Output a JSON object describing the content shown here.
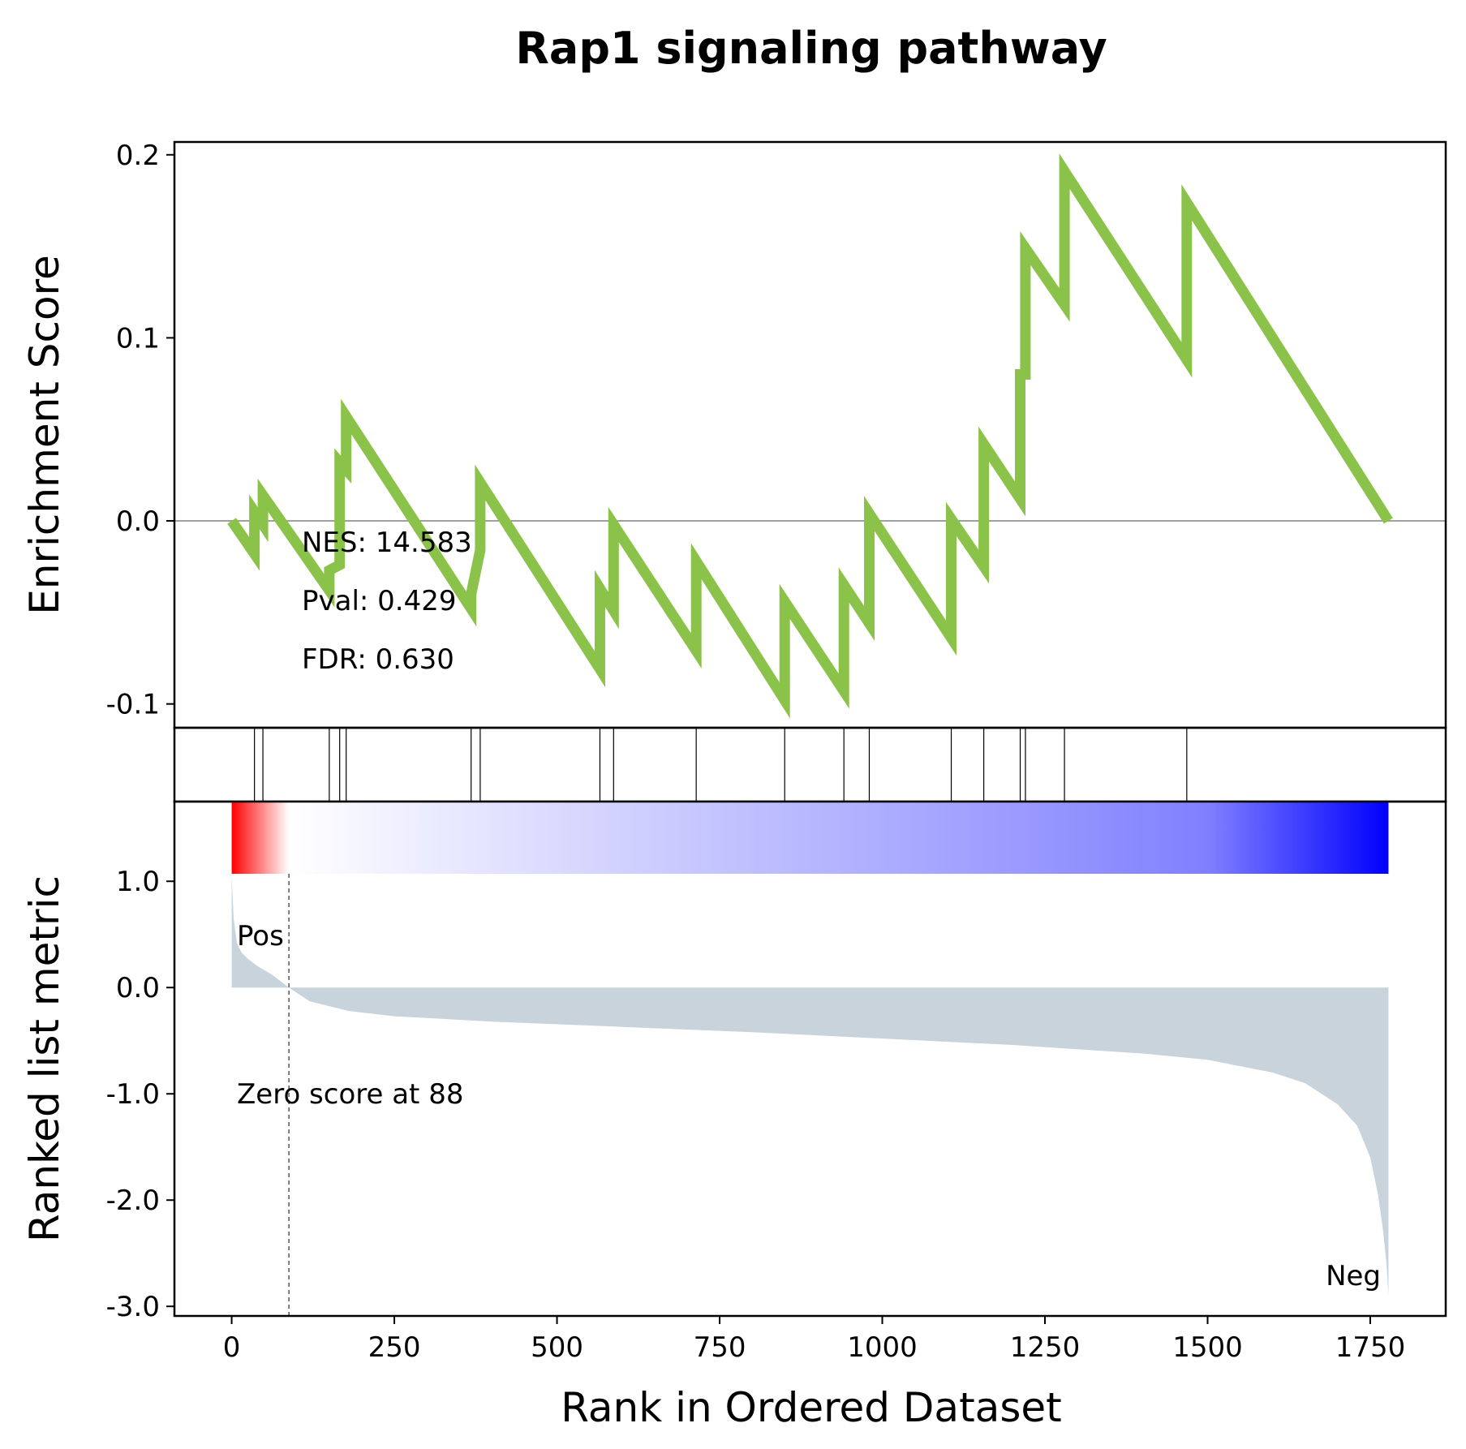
{
  "chart_data": {
    "type": "line",
    "title": "Rap1 signaling pathway",
    "xlabel": "Rank in Ordered Dataset",
    "xlim": [
      -88,
      1866
    ],
    "x_ticks": [
      "0",
      "250",
      "500",
      "750",
      "1000",
      "1250",
      "1500",
      "1750"
    ],
    "x_tick_values": [
      0,
      250,
      500,
      750,
      1000,
      1250,
      1500,
      1750
    ],
    "enrichment": {
      "ylabel": "Enrichment Score",
      "ylim": [
        -0.113,
        0.207
      ],
      "y_ticks": [
        "0.2",
        "0.1",
        "0.0",
        "-0.1"
      ],
      "y_tick_values": [
        0.2,
        0.1,
        0.0,
        -0.1
      ],
      "line_color": "#8bc34a",
      "points": [
        [
          0,
          0.0
        ],
        [
          35,
          -0.018
        ],
        [
          35,
          0.005
        ],
        [
          48,
          -0.002
        ],
        [
          48,
          0.014
        ],
        [
          150,
          -0.038
        ],
        [
          150,
          -0.027
        ],
        [
          166,
          -0.024
        ],
        [
          166,
          0.032
        ],
        [
          176,
          0.028
        ],
        [
          176,
          0.057
        ],
        [
          368,
          -0.048
        ],
        [
          368,
          -0.04
        ],
        [
          382,
          -0.016
        ],
        [
          382,
          0.021
        ],
        [
          566,
          -0.081
        ],
        [
          566,
          -0.037
        ],
        [
          587,
          -0.049
        ],
        [
          587,
          -0.002
        ],
        [
          714,
          -0.071
        ],
        [
          714,
          -0.022
        ],
        [
          850,
          -0.098
        ],
        [
          850,
          -0.044
        ],
        [
          941,
          -0.093
        ],
        [
          941,
          -0.035
        ],
        [
          980,
          -0.056
        ],
        [
          980,
          0.004
        ],
        [
          1106,
          -0.064
        ],
        [
          1106,
          0.001
        ],
        [
          1156,
          -0.025
        ],
        [
          1156,
          0.042
        ],
        [
          1212,
          0.012
        ],
        [
          1212,
          0.08
        ],
        [
          1220,
          0.08
        ],
        [
          1220,
          0.149
        ],
        [
          1280,
          0.118
        ],
        [
          1280,
          0.191
        ],
        [
          1468,
          0.088
        ],
        [
          1468,
          0.174
        ],
        [
          1778,
          0.0
        ]
      ],
      "zero_line_color": "#808080"
    },
    "stats": {
      "nes": "NES: 14.583",
      "pval": "Pval: 0.429",
      "fdr": "FDR: 0.630"
    },
    "hits": [
      35,
      48,
      150,
      166,
      176,
      368,
      382,
      566,
      587,
      714,
      850,
      941,
      980,
      1106,
      1156,
      1212,
      1220,
      1280,
      1468
    ],
    "ranked_metric": {
      "ylabel": "Ranked list metric",
      "ylim": [
        -3.09,
        1.75
      ],
      "y_ticks": [
        "1.0",
        "0.0",
        "-1.0",
        "-2.0",
        "-3.0"
      ],
      "y_tick_values": [
        1.0,
        0.0,
        -1.0,
        -2.0,
        -3.0
      ],
      "fill_color": "#c8d3dc",
      "points": [
        [
          0,
          1.05
        ],
        [
          3,
          0.65
        ],
        [
          8,
          0.42
        ],
        [
          15,
          0.33
        ],
        [
          25,
          0.27
        ],
        [
          40,
          0.2
        ],
        [
          60,
          0.13
        ],
        [
          88,
          0.0
        ],
        [
          120,
          -0.13
        ],
        [
          180,
          -0.22
        ],
        [
          250,
          -0.27
        ],
        [
          400,
          -0.32
        ],
        [
          600,
          -0.37
        ],
        [
          800,
          -0.42
        ],
        [
          1000,
          -0.48
        ],
        [
          1200,
          -0.54
        ],
        [
          1400,
          -0.62
        ],
        [
          1500,
          -0.68
        ],
        [
          1600,
          -0.8
        ],
        [
          1650,
          -0.9
        ],
        [
          1700,
          -1.1
        ],
        [
          1730,
          -1.3
        ],
        [
          1750,
          -1.6
        ],
        [
          1762,
          -1.95
        ],
        [
          1770,
          -2.3
        ],
        [
          1775,
          -2.6
        ],
        [
          1778,
          -2.9
        ]
      ],
      "zero_score_index": 88,
      "zero_score_text": "Zero score at 88",
      "pos_label": "Pos",
      "neg_label": "Neg",
      "pos_color": "#ff0000",
      "neg_color": "#0000ff",
      "heatmap": [
        {
          "x": 0,
          "color": "#ff0000"
        },
        {
          "x": 88,
          "color": "#ffffff"
        },
        {
          "x": 1500,
          "color": "#8080ff"
        },
        {
          "x": 1778,
          "color": "#0000ff"
        }
      ]
    }
  }
}
